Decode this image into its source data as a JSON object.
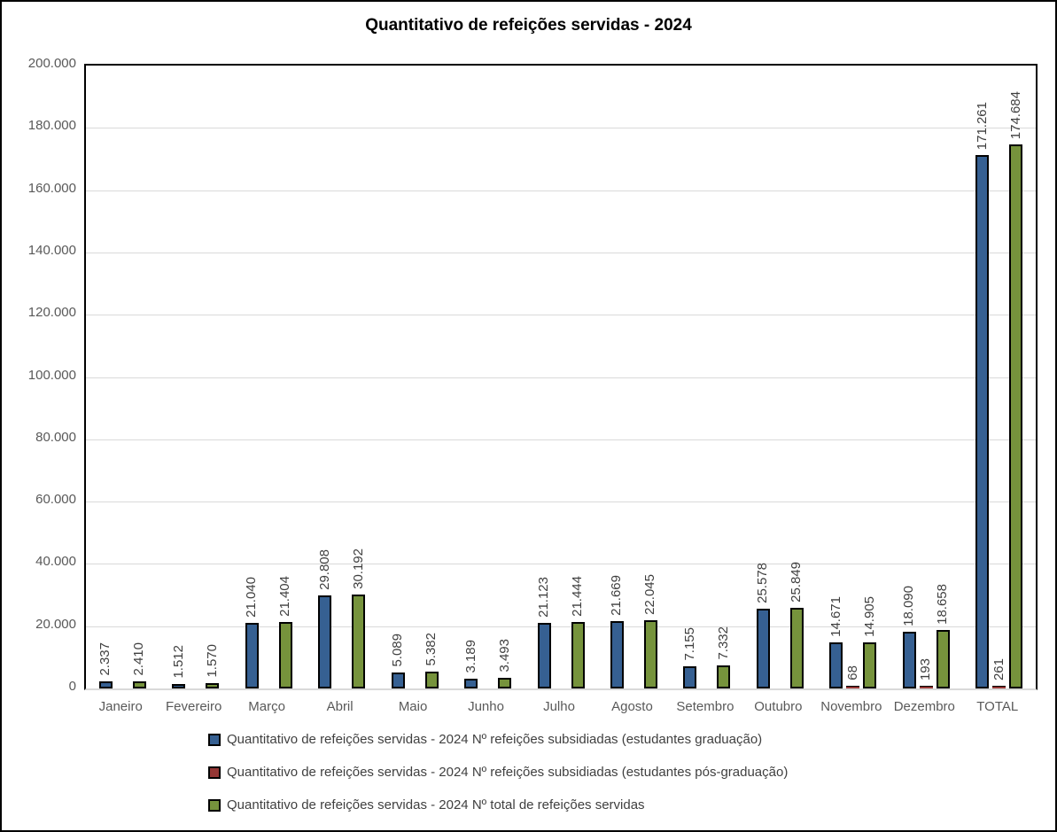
{
  "title": "Quantitativo de refeições servidas - 2024",
  "colors": {
    "graduacao": "#366092",
    "pos_graduacao": "#953735",
    "total": "#76933C",
    "gridline": "#D9D9D9",
    "axis_text": "#595959",
    "data_label_text": "#3F3F3F",
    "frame_border": "#000000"
  },
  "chart_data": {
    "type": "bar",
    "title": "Quantitativo de refeições servidas - 2024",
    "categories": [
      "Janeiro",
      "Fevereiro",
      "Março",
      "Abril",
      "Maio",
      "Junho",
      "Julho",
      "Agosto",
      "Setembro",
      "Outubro",
      "Novembro",
      "Dezembro",
      "TOTAL"
    ],
    "series": [
      {
        "name": "Quantitativo de refeições servidas - 2024 Nº refeições subsidiadas (estudantes graduação)",
        "color_key": "graduacao",
        "values": [
          2337,
          1512,
          21040,
          29808,
          5089,
          3189,
          21123,
          21669,
          7155,
          25578,
          14671,
          18090,
          171261
        ]
      },
      {
        "name": "Quantitativo de refeições servidas - 2024 Nº refeições subsidiadas (estudantes pós-graduação)",
        "color_key": "pos_graduacao",
        "values": [
          null,
          null,
          null,
          null,
          null,
          null,
          null,
          null,
          null,
          null,
          68,
          193,
          261
        ]
      },
      {
        "name": "Quantitativo de refeições servidas - 2024 Nº total de refeições servidas",
        "color_key": "total",
        "values": [
          2410,
          1570,
          21404,
          30192,
          5382,
          3493,
          21444,
          22045,
          7332,
          25849,
          14905,
          18658,
          174684
        ]
      }
    ],
    "data_labels": {
      "graduacao": [
        "2.337",
        "1.512",
        "21.040",
        "29.808",
        "5.089",
        "3.189",
        "21.123",
        "21.669",
        "7.155",
        "25.578",
        "14.671",
        "18.090",
        "171.261"
      ],
      "pos_graduacao": [
        null,
        null,
        null,
        null,
        null,
        null,
        null,
        null,
        null,
        null,
        "68",
        "193",
        "261"
      ],
      "total": [
        "2.410",
        "1.570",
        "21.404",
        "30.192",
        "5.382",
        "3.493",
        "21.444",
        "22.045",
        "7.332",
        "25.849",
        "14.905",
        "18.658",
        "174.684"
      ]
    },
    "ylim": [
      0,
      200000
    ],
    "ytick_step": 20000,
    "ytick_labels": [
      "0",
      "20.000",
      "40.000",
      "60.000",
      "80.000",
      "100.000",
      "120.000",
      "140.000",
      "160.000",
      "180.000",
      "200.000"
    ],
    "grid": true,
    "legend_position": "bottom",
    "bar_label_rotation": 90
  },
  "legend": {
    "items": [
      {
        "label": "Quantitativo de refeições servidas - 2024 Nº refeições subsidiadas (estudantes graduação)",
        "color_key": "graduacao"
      },
      {
        "label": "Quantitativo de refeições servidas - 2024 Nº refeições subsidiadas (estudantes pós-graduação)",
        "color_key": "pos_graduacao"
      },
      {
        "label": "Quantitativo de refeições servidas - 2024 Nº total de refeições servidas",
        "color_key": "total"
      }
    ]
  }
}
